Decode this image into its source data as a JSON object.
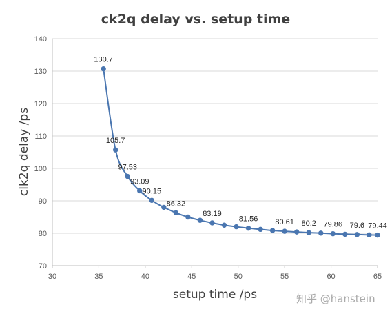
{
  "chart_data": {
    "type": "line",
    "title": "ck2q delay  vs. setup time",
    "xlabel": "setup time /ps",
    "ylabel": "clk2q delay /ps",
    "xlim": [
      30,
      65
    ],
    "ylim": [
      70,
      140
    ],
    "xticks": [
      30,
      35,
      40,
      45,
      50,
      55,
      60,
      65
    ],
    "yticks": [
      70,
      80,
      90,
      100,
      110,
      120,
      130,
      140
    ],
    "grid": "horizontal",
    "series_color": "#4a76b0",
    "series": [
      {
        "x": [
          35.5,
          36.8,
          38.1,
          39.4,
          40.7,
          42.0,
          43.3,
          44.6,
          45.9,
          47.2,
          48.5,
          49.8,
          51.1,
          52.4,
          53.7,
          55.0,
          56.3,
          57.6,
          58.9,
          60.2,
          61.5,
          62.8,
          64.1,
          65.0
        ],
        "y": [
          130.7,
          105.7,
          97.53,
          93.09,
          90.15,
          88.0,
          86.32,
          85.0,
          84.0,
          83.19,
          82.5,
          82.0,
          81.56,
          81.2,
          80.85,
          80.61,
          80.4,
          80.2,
          80.05,
          79.86,
          79.7,
          79.6,
          79.5,
          79.44
        ]
      }
    ],
    "data_labels": [
      {
        "index": 0,
        "text": "130.7"
      },
      {
        "index": 1,
        "text": "105.7"
      },
      {
        "index": 2,
        "text": "97.53"
      },
      {
        "index": 3,
        "text": "93.09"
      },
      {
        "index": 4,
        "text": "90.15"
      },
      {
        "index": 6,
        "text": "86.32"
      },
      {
        "index": 9,
        "text": "83.19"
      },
      {
        "index": 12,
        "text": "81.56"
      },
      {
        "index": 15,
        "text": "80.61"
      },
      {
        "index": 17,
        "text": "80.2"
      },
      {
        "index": 19,
        "text": "79.86"
      },
      {
        "index": 21,
        "text": "79.6"
      },
      {
        "index": 23,
        "text": "79.44"
      }
    ]
  },
  "watermark": "知乎 @hanstein"
}
